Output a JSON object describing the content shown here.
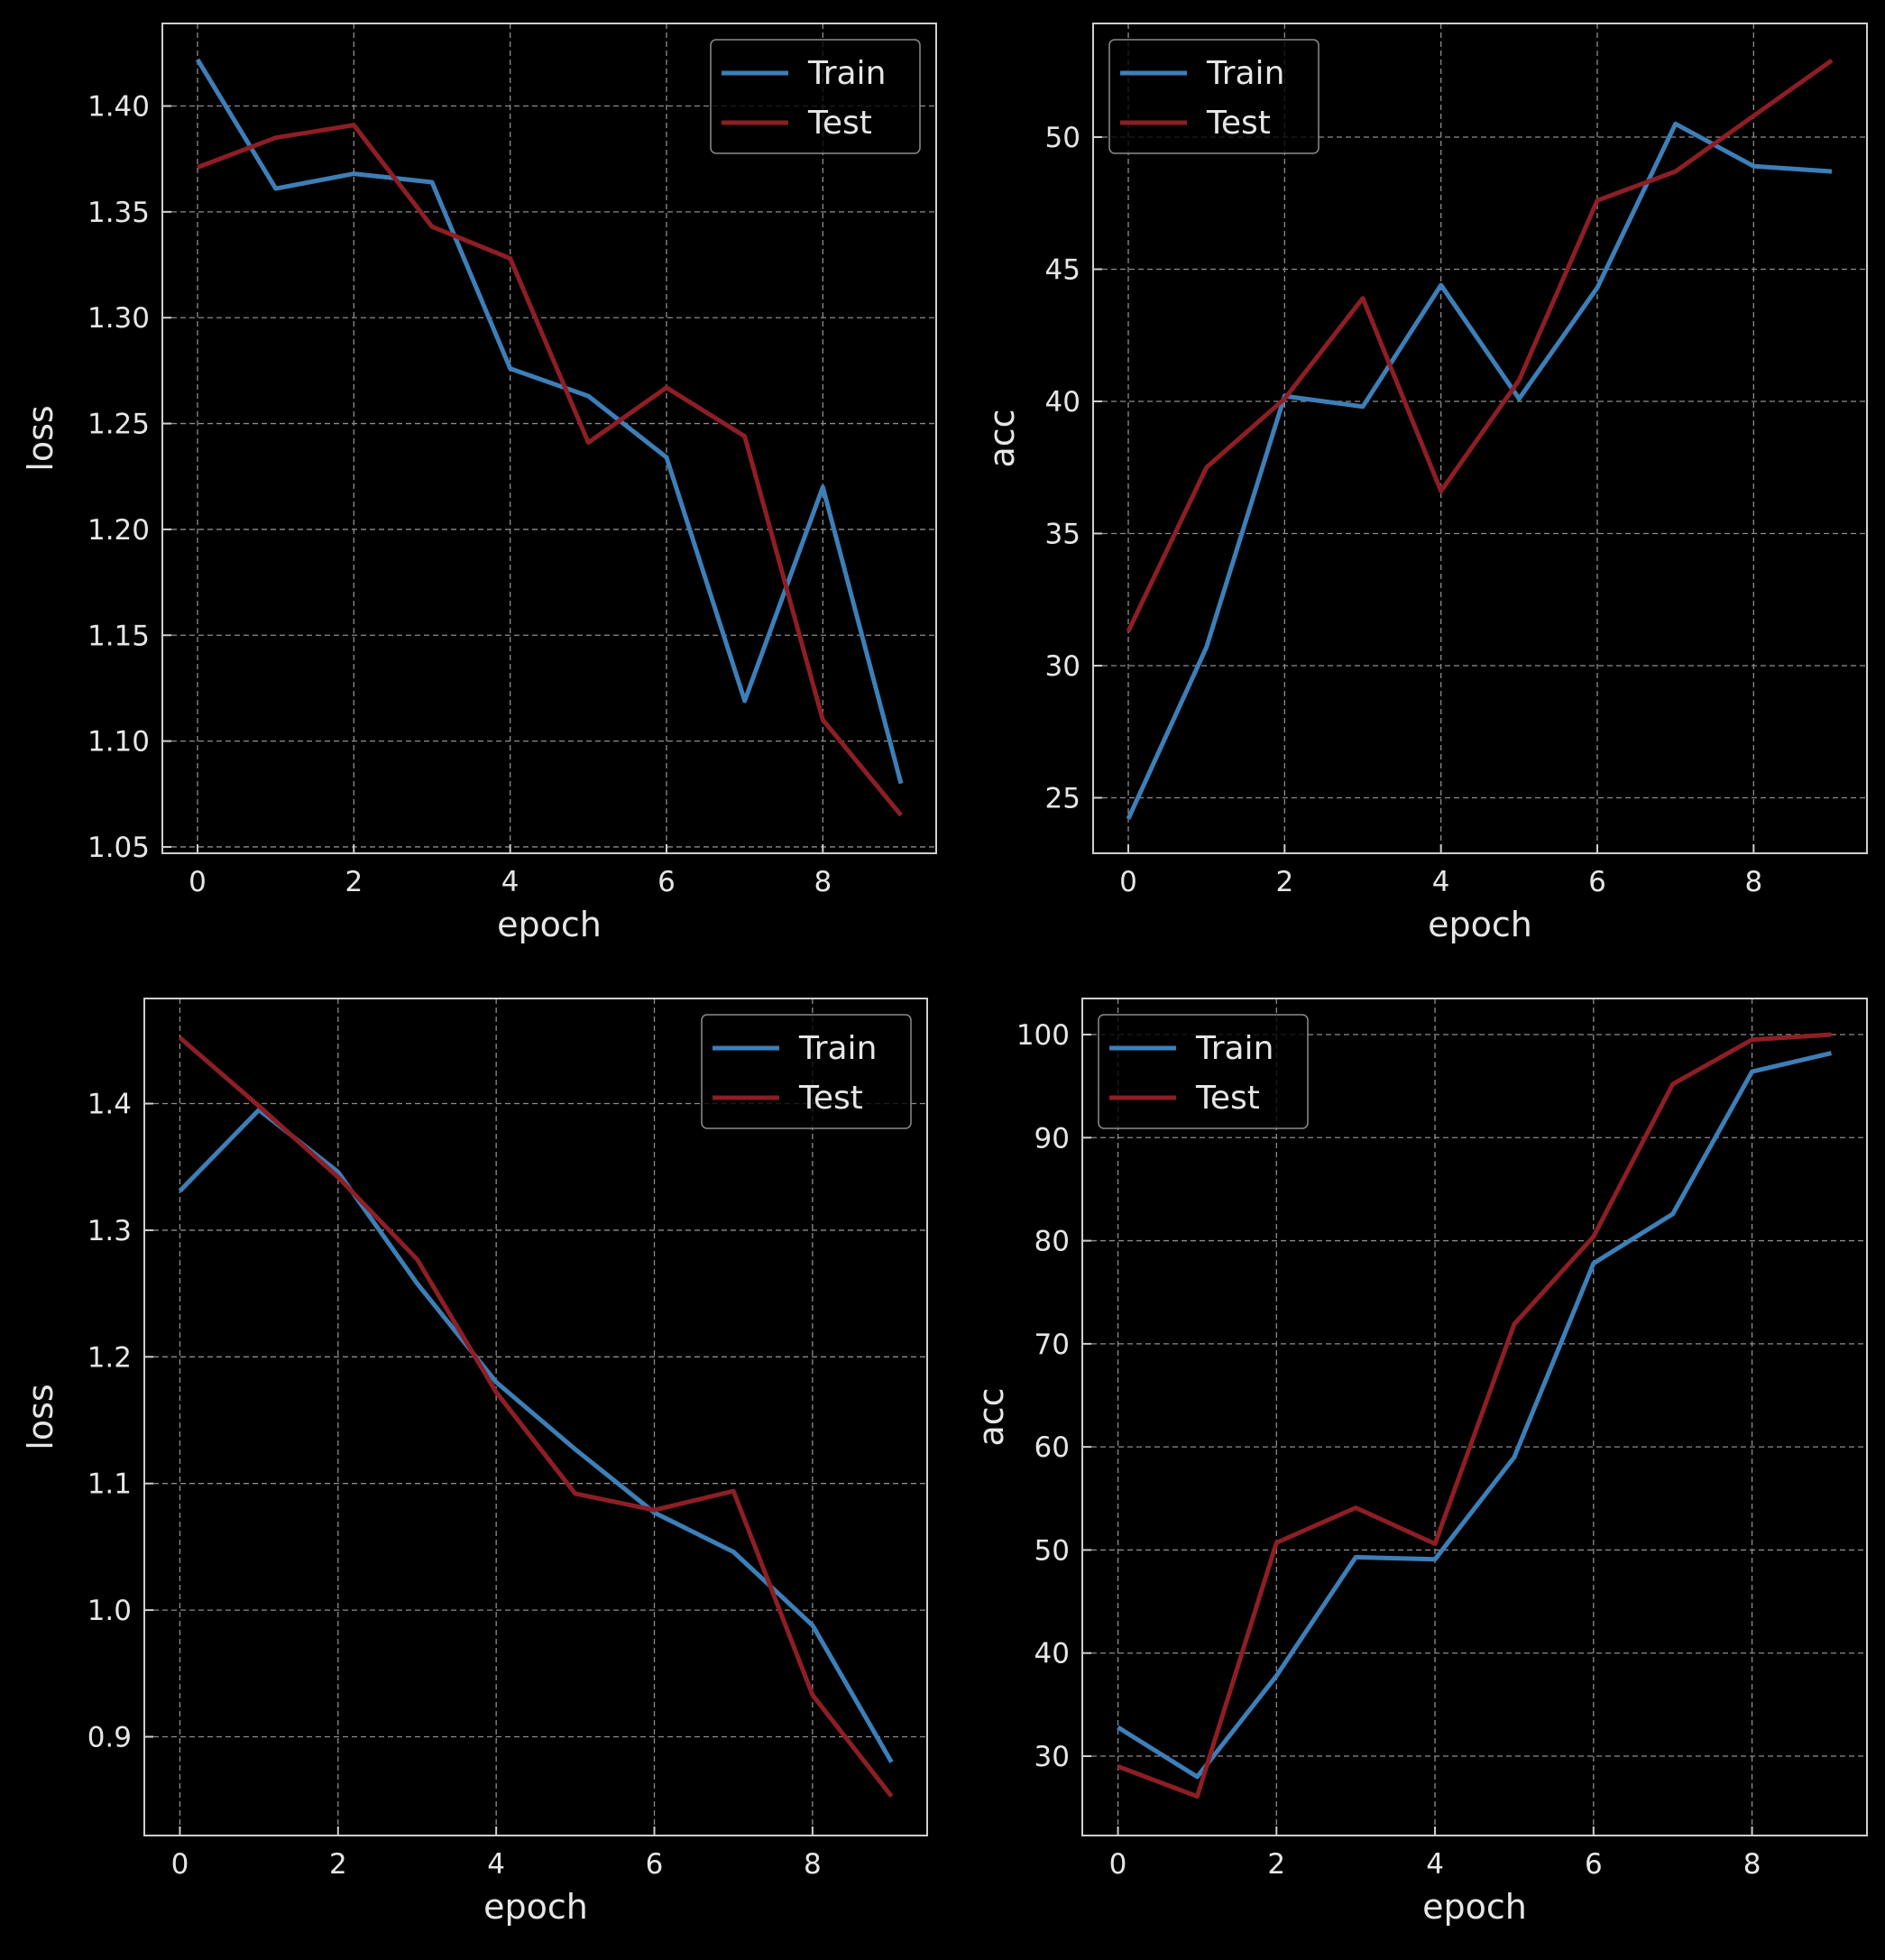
{
  "chart_data": [
    {
      "type": "line",
      "xlabel": "epoch",
      "ylabel": "loss",
      "x": [
        0,
        1,
        2,
        3,
        4,
        5,
        6,
        7,
        8,
        9
      ],
      "xlim": [
        -0.45,
        9.45
      ],
      "ylim": [
        1.047,
        1.439
      ],
      "xticks": [
        0,
        2,
        4,
        6,
        8
      ],
      "yticks": [
        1.05,
        1.1,
        1.15,
        1.2,
        1.25,
        1.3,
        1.35,
        1.4
      ],
      "ytick_labels": [
        "1.05",
        "1.10",
        "1.15",
        "1.20",
        "1.25",
        "1.30",
        "1.35",
        "1.40"
      ],
      "grid": true,
      "legend_position": "top-right",
      "series": [
        {
          "name": "Train",
          "color": "#3d7fb8",
          "values": [
            1.422,
            1.361,
            1.368,
            1.364,
            1.276,
            1.263,
            1.234,
            1.119,
            1.22,
            1.08
          ]
        },
        {
          "name": "Test",
          "color": "#8e1e25",
          "values": [
            1.371,
            1.385,
            1.391,
            1.343,
            1.328,
            1.241,
            1.267,
            1.244,
            1.11,
            1.065
          ]
        }
      ]
    },
    {
      "type": "line",
      "xlabel": "epoch",
      "ylabel": "acc",
      "x": [
        0,
        1,
        2,
        3,
        4,
        5,
        6,
        7,
        8,
        9
      ],
      "xlim": [
        -0.45,
        9.45
      ],
      "ylim": [
        22.9,
        54.3
      ],
      "xticks": [
        0,
        2,
        4,
        6,
        8
      ],
      "yticks": [
        25,
        30,
        35,
        40,
        45,
        50
      ],
      "ytick_labels": [
        "25",
        "30",
        "35",
        "40",
        "45",
        "50"
      ],
      "grid": true,
      "legend_position": "top-left",
      "series": [
        {
          "name": "Train",
          "color": "#3d7fb8",
          "values": [
            24.2,
            30.7,
            40.2,
            39.8,
            44.4,
            40.1,
            44.3,
            50.5,
            48.9,
            48.7
          ]
        },
        {
          "name": "Test",
          "color": "#8e1e25",
          "values": [
            31.3,
            37.5,
            40.1,
            43.9,
            36.6,
            40.8,
            47.6,
            48.7,
            50.8,
            52.9
          ]
        }
      ]
    },
    {
      "type": "line",
      "xlabel": "epoch",
      "ylabel": "loss",
      "x": [
        0,
        1,
        2,
        3,
        4,
        5,
        6,
        7,
        8,
        9
      ],
      "xlim": [
        -0.45,
        9.45
      ],
      "ylim": [
        0.822,
        1.483
      ],
      "xticks": [
        0,
        2,
        4,
        6,
        8
      ],
      "yticks": [
        0.9,
        1.0,
        1.1,
        1.2,
        1.3,
        1.4
      ],
      "ytick_labels": [
        "0.9",
        "1.0",
        "1.1",
        "1.2",
        "1.3",
        "1.4"
      ],
      "grid": true,
      "legend_position": "top-right",
      "series": [
        {
          "name": "Train",
          "color": "#3d7fb8",
          "values": [
            1.331,
            1.395,
            1.346,
            1.258,
            1.18,
            1.127,
            1.077,
            1.046,
            0.988,
            0.88
          ]
        },
        {
          "name": "Test",
          "color": "#8e1e25",
          "values": [
            1.452,
            1.398,
            1.342,
            1.277,
            1.172,
            1.092,
            1.079,
            1.094,
            0.933,
            0.853
          ]
        }
      ]
    },
    {
      "type": "line",
      "xlabel": "epoch",
      "ylabel": "acc",
      "x": [
        0,
        1,
        2,
        3,
        4,
        5,
        6,
        7,
        8,
        9
      ],
      "xlim": [
        -0.45,
        9.45
      ],
      "ylim": [
        22.3,
        103.5
      ],
      "xticks": [
        0,
        2,
        4,
        6,
        8
      ],
      "yticks": [
        30,
        40,
        50,
        60,
        70,
        80,
        90,
        100
      ],
      "ytick_labels": [
        "30",
        "40",
        "50",
        "60",
        "70",
        "80",
        "90",
        "100"
      ],
      "grid": true,
      "legend_position": "top-left",
      "series": [
        {
          "name": "Train",
          "color": "#3d7fb8",
          "values": [
            32.8,
            28.0,
            37.8,
            49.3,
            49.1,
            59.0,
            77.8,
            82.6,
            96.4,
            98.2
          ]
        },
        {
          "name": "Test",
          "color": "#8e1e25",
          "values": [
            29.0,
            26.1,
            50.7,
            54.1,
            50.6,
            71.9,
            80.4,
            95.2,
            99.5,
            100.0
          ]
        }
      ]
    }
  ],
  "style": {
    "background": "#000000",
    "axes_color": "#cfcfcf",
    "grid_color": "#8c8c8c",
    "text_color": "#e6e6e6"
  }
}
